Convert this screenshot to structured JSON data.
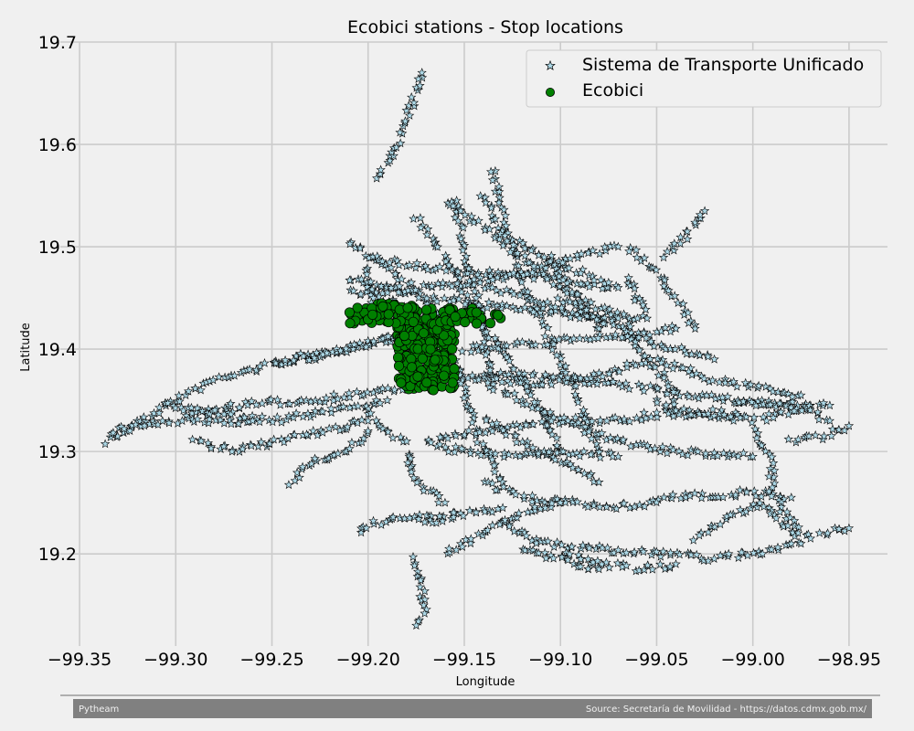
{
  "chart_data": {
    "type": "scatter",
    "title": "Ecobici stations - Stop locations",
    "xlabel": "Longitude",
    "ylabel": "Latitude",
    "xlim": [
      -99.36,
      -98.93
    ],
    "ylim": [
      19.11,
      19.7
    ],
    "xticks": [
      -99.35,
      -99.3,
      -99.25,
      -99.2,
      -99.15,
      -99.1,
      -99.05,
      -99.0,
      -98.95
    ],
    "xtick_labels": [
      "−99.35",
      "−99.30",
      "−99.25",
      "−99.20",
      "−99.15",
      "−99.10",
      "−99.05",
      "−99.00",
      "−98.95"
    ],
    "yticks": [
      19.2,
      19.3,
      19.4,
      19.5,
      19.6,
      19.7
    ],
    "ytick_labels": [
      "19.2",
      "19.3",
      "19.4",
      "19.5",
      "19.6",
      "19.7"
    ],
    "grid": true,
    "legend_position": "top-right",
    "series": [
      {
        "name": "Sistema de Transporte Unificado",
        "marker": "star",
        "color": "#add8e6",
        "edge_color": "#000000",
        "polylines": [
          [
            [
              -99.335,
              19.31
            ],
            [
              -99.31,
              19.34
            ],
            [
              -99.28,
              19.37
            ],
            [
              -99.24,
              19.39
            ],
            [
              -99.2,
              19.405
            ],
            [
              -99.17,
              19.42
            ]
          ],
          [
            [
              -99.335,
              19.32
            ],
            [
              -99.3,
              19.33
            ],
            [
              -99.27,
              19.345
            ],
            [
              -99.23,
              19.35
            ],
            [
              -99.19,
              19.36
            ],
            [
              -99.16,
              19.37
            ],
            [
              -99.13,
              19.375
            ],
            [
              -99.09,
              19.37
            ],
            [
              -99.05,
              19.36
            ],
            [
              -99.01,
              19.35
            ],
            [
              -98.97,
              19.345
            ]
          ],
          [
            [
              -99.305,
              19.345
            ],
            [
              -99.27,
              19.335
            ],
            [
              -99.25,
              19.33
            ],
            [
              -99.22,
              19.34
            ],
            [
              -99.19,
              19.35
            ]
          ],
          [
            [
              -99.29,
              19.31
            ],
            [
              -99.27,
              19.3
            ],
            [
              -99.25,
              19.31
            ],
            [
              -99.22,
              19.32
            ],
            [
              -99.2,
              19.33
            ]
          ],
          [
            [
              -99.29,
              19.33
            ],
            [
              -99.26,
              19.33
            ]
          ],
          [
            [
              -99.25,
              19.385
            ],
            [
              -99.22,
              19.395
            ],
            [
              -99.19,
              19.41
            ],
            [
              -99.16,
              19.42
            ]
          ],
          [
            [
              -99.24,
              19.27
            ],
            [
              -99.23,
              19.29
            ],
            [
              -99.21,
              19.3
            ],
            [
              -99.2,
              19.32
            ]
          ],
          [
            [
              -99.205,
              19.22
            ],
            [
              -99.19,
              19.235
            ],
            [
              -99.17,
              19.235
            ],
            [
              -99.155,
              19.24
            ]
          ],
          [
            [
              -99.195,
              19.565
            ],
            [
              -99.185,
              19.6
            ],
            [
              -99.178,
              19.635
            ],
            [
              -99.172,
              19.67
            ]
          ],
          [
            [
              -99.21,
              19.505
            ],
            [
              -99.19,
              19.48
            ],
            [
              -99.17,
              19.45
            ],
            [
              -99.16,
              19.42
            ],
            [
              -99.155,
              19.39
            ],
            [
              -99.15,
              19.36
            ],
            [
              -99.145,
              19.33
            ],
            [
              -99.14,
              19.3
            ],
            [
              -99.13,
              19.27
            ]
          ],
          [
            [
              -99.155,
              19.545
            ],
            [
              -99.15,
              19.5
            ],
            [
              -99.145,
              19.46
            ],
            [
              -99.14,
              19.42
            ],
            [
              -99.138,
              19.39
            ],
            [
              -99.135,
              19.36
            ]
          ],
          [
            [
              -99.135,
              19.575
            ],
            [
              -99.13,
              19.53
            ],
            [
              -99.125,
              19.5
            ],
            [
              -99.12,
              19.46
            ],
            [
              -99.11,
              19.43
            ],
            [
              -99.1,
              19.39
            ],
            [
              -99.09,
              19.35
            ],
            [
              -99.08,
              19.3
            ]
          ],
          [
            [
              -99.175,
              19.53
            ],
            [
              -99.16,
              19.49
            ],
            [
              -99.15,
              19.455
            ],
            [
              -99.14,
              19.42
            ],
            [
              -99.13,
              19.4
            ],
            [
              -99.12,
              19.37
            ],
            [
              -99.11,
              19.34
            ],
            [
              -99.1,
              19.3
            ]
          ],
          [
            [
              -99.16,
              19.545
            ],
            [
              -99.14,
              19.52
            ],
            [
              -99.12,
              19.49
            ],
            [
              -99.1,
              19.46
            ],
            [
              -99.08,
              19.44
            ],
            [
              -99.06,
              19.43
            ]
          ],
          [
            [
              -99.2,
              19.49
            ],
            [
              -99.17,
              19.48
            ],
            [
              -99.14,
              19.475
            ],
            [
              -99.11,
              19.47
            ],
            [
              -99.09,
              19.465
            ],
            [
              -99.07,
              19.46
            ]
          ],
          [
            [
              -99.21,
              19.47
            ],
            [
              -99.18,
              19.455
            ],
            [
              -99.15,
              19.445
            ],
            [
              -99.12,
              19.44
            ],
            [
              -99.1,
              19.435
            ],
            [
              -99.07,
              19.43
            ]
          ],
          [
            [
              -99.21,
              19.455
            ],
            [
              -99.17,
              19.46
            ],
            [
              -99.13,
              19.47
            ],
            [
              -99.09,
              19.49
            ],
            [
              -99.07,
              19.5
            ]
          ],
          [
            [
              -99.14,
              19.55
            ],
            [
              -99.13,
              19.51
            ],
            [
              -99.11,
              19.49
            ],
            [
              -99.09,
              19.475
            ],
            [
              -99.075,
              19.465
            ]
          ],
          [
            [
              -99.065,
              19.5
            ],
            [
              -99.05,
              19.475
            ],
            [
              -99.04,
              19.45
            ],
            [
              -99.03,
              19.42
            ]
          ],
          [
            [
              -99.045,
              19.49
            ],
            [
              -99.035,
              19.51
            ],
            [
              -99.025,
              19.535
            ]
          ],
          [
            [
              -99.145,
              19.37
            ],
            [
              -99.11,
              19.365
            ],
            [
              -99.08,
              19.375
            ],
            [
              -99.05,
              19.39
            ],
            [
              -99.02,
              19.37
            ],
            [
              -98.99,
              19.36
            ],
            [
              -98.975,
              19.355
            ]
          ],
          [
            [
              -99.15,
              19.4
            ],
            [
              -99.12,
              19.405
            ],
            [
              -99.09,
              19.41
            ],
            [
              -99.06,
              19.415
            ],
            [
              -99.04,
              19.42
            ]
          ],
          [
            [
              -99.13,
              19.36
            ],
            [
              -99.1,
              19.33
            ],
            [
              -99.07,
              19.31
            ],
            [
              -99.04,
              19.3
            ],
            [
              -99.0,
              19.295
            ]
          ],
          [
            [
              -99.17,
              19.31
            ],
            [
              -99.14,
              19.32
            ],
            [
              -99.1,
              19.33
            ],
            [
              -99.07,
              19.33
            ],
            [
              -99.04,
              19.34
            ],
            [
              -99.01,
              19.33
            ]
          ],
          [
            [
              -99.165,
              19.305
            ],
            [
              -99.15,
              19.3
            ],
            [
              -99.12,
              19.295
            ],
            [
              -99.1,
              19.3
            ],
            [
              -99.07,
              19.295
            ]
          ],
          [
            [
              -99.14,
              19.27
            ],
            [
              -99.12,
              19.255
            ],
            [
              -99.09,
              19.25
            ],
            [
              -99.07,
              19.245
            ],
            [
              -99.04,
              19.255
            ],
            [
              -99.0,
              19.26
            ],
            [
              -98.98,
              19.255
            ]
          ],
          [
            [
              -99.18,
              19.3
            ],
            [
              -99.175,
              19.27
            ],
            [
              -99.16,
              19.25
            ]
          ],
          [
            [
              -99.13,
              19.23
            ],
            [
              -99.11,
              19.21
            ],
            [
              -99.08,
              19.205
            ],
            [
              -99.05,
              19.2
            ],
            [
              -99.02,
              19.195
            ],
            [
              -99.0,
              19.2
            ],
            [
              -98.98,
              19.21
            ]
          ],
          [
            [
              -99.16,
              19.2
            ],
            [
              -99.14,
              19.22
            ],
            [
              -99.12,
              19.24
            ],
            [
              -99.1,
              19.25
            ]
          ],
          [
            [
              -99.175,
              19.195
            ],
            [
              -99.172,
              19.165
            ],
            [
              -99.17,
              19.145
            ],
            [
              -99.175,
              19.13
            ]
          ],
          [
            [
              -99.1,
              19.2
            ],
            [
              -99.08,
              19.19
            ],
            [
              -99.06,
              19.185
            ],
            [
              -99.04,
              19.19
            ]
          ],
          [
            [
              -99.03,
              19.215
            ],
            [
              -99.01,
              19.24
            ],
            [
              -98.995,
              19.25
            ],
            [
              -98.985,
              19.23
            ],
            [
              -98.975,
              19.21
            ]
          ],
          [
            [
              -99.0,
              19.32
            ],
            [
              -98.99,
              19.29
            ],
            [
              -98.99,
              19.26
            ],
            [
              -98.98,
              19.23
            ],
            [
              -98.97,
              19.215
            ]
          ],
          [
            [
              -98.98,
              19.31
            ],
            [
              -98.965,
              19.315
            ],
            [
              -98.95,
              19.325
            ]
          ],
          [
            [
              -98.965,
              19.22
            ],
            [
              -98.95,
              19.225
            ]
          ],
          [
            [
              -99.01,
              19.35
            ],
            [
              -98.99,
              19.345
            ],
            [
              -98.97,
              19.34
            ],
            [
              -98.96,
              19.33
            ]
          ],
          [
            [
              -99.05,
              19.35
            ],
            [
              -99.04,
              19.335
            ],
            [
              -99.02,
              19.34
            ],
            [
              -99.0,
              19.33
            ],
            [
              -98.98,
              19.34
            ],
            [
              -98.96,
              19.345
            ]
          ],
          [
            [
              -99.065,
              19.425
            ],
            [
              -99.06,
              19.4
            ],
            [
              -99.05,
              19.38
            ],
            [
              -99.04,
              19.36
            ],
            [
              -99.04,
              19.34
            ]
          ],
          [
            [
              -99.1,
              19.45
            ],
            [
              -99.08,
              19.43
            ],
            [
              -99.06,
              19.41
            ],
            [
              -99.04,
              19.4
            ],
            [
              -99.02,
              19.39
            ]
          ],
          [
            [
              -99.105,
              19.49
            ],
            [
              -99.1,
              19.47
            ],
            [
              -99.09,
              19.445
            ],
            [
              -99.08,
              19.42
            ]
          ],
          [
            [
              -99.195,
              19.45
            ],
            [
              -99.18,
              19.44
            ],
            [
              -99.17,
              19.42
            ]
          ],
          [
            [
              -99.2,
              19.34
            ],
            [
              -99.19,
              19.32
            ],
            [
              -99.18,
              19.31
            ]
          ],
          [
            [
              -99.14,
              19.33
            ],
            [
              -99.12,
              19.31
            ],
            [
              -99.1,
              19.29
            ],
            [
              -99.08,
              19.27
            ]
          ],
          [
            [
              -99.12,
              19.205
            ],
            [
              -99.1,
              19.195
            ],
            [
              -99.08,
              19.185
            ]
          ],
          [
            [
              -99.17,
              19.23
            ],
            [
              -99.15,
              19.24
            ],
            [
              -99.13,
              19.245
            ]
          ],
          [
            [
              -99.14,
              19.46
            ],
            [
              -99.12,
              19.455
            ],
            [
              -99.1,
              19.44
            ],
            [
              -99.09,
              19.43
            ]
          ],
          [
            [
              -99.065,
              19.47
            ],
            [
              -99.06,
              19.45
            ],
            [
              -99.055,
              19.43
            ]
          ],
          [
            [
              -99.2,
              19.48
            ],
            [
              -99.2,
              19.46
            ],
            [
              -99.195,
              19.44
            ]
          ]
        ]
      },
      {
        "name": "Ecobici",
        "marker": "circle",
        "color": "#008000",
        "edge_color": "#000000",
        "clusters": [
          {
            "x_range": [
              -99.185,
              -99.155
            ],
            "y_range": [
              19.36,
              19.44
            ],
            "count": 260
          },
          {
            "x_range": [
              -99.21,
              -99.175
            ],
            "y_range": [
              19.425,
              19.445
            ],
            "count": 50
          },
          {
            "x_range": [
              -99.16,
              -99.13
            ],
            "y_range": [
              19.425,
              19.44
            ],
            "count": 25
          }
        ]
      }
    ]
  },
  "footer": {
    "left": "Pytheam",
    "right": "Source: Secretaría de Movilidad - https://datos.cdmx.gob.mx/"
  }
}
